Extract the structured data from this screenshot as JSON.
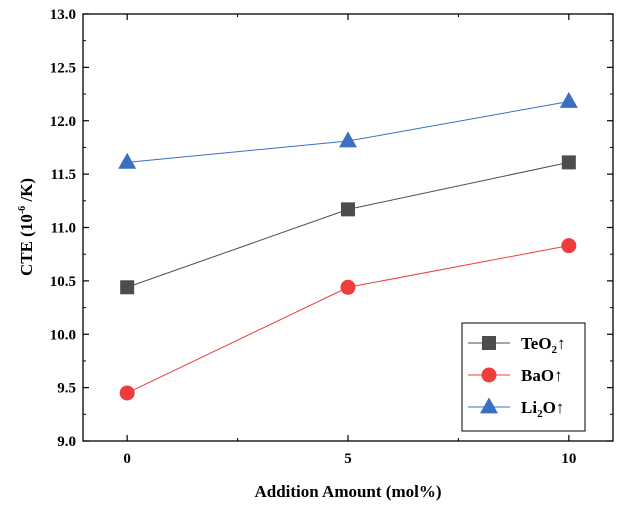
{
  "chart_data": {
    "type": "line",
    "xlabel": "Addition Amount (mol%)",
    "ylabel": {
      "prefix": "CTE (10",
      "superscript": "-6",
      "suffix": " /K)"
    },
    "x": [
      0,
      5,
      10
    ],
    "x_ticks": [
      "0",
      "5",
      "10"
    ],
    "xlim": [
      -1,
      11
    ],
    "y_ticks": [
      "9.0",
      "9.5",
      "10.0",
      "10.5",
      "11.0",
      "11.5",
      "12.0",
      "12.5",
      "13.0"
    ],
    "ylim": [
      9.0,
      13.0
    ],
    "grid": false,
    "legend_position": "bottom-right",
    "series": [
      {
        "name": "TeO2↑",
        "legend": {
          "base": "TeO",
          "subscript": "2",
          "suffix": "↑"
        },
        "values": [
          10.44,
          11.17,
          11.61
        ],
        "color": "#4d4d4d",
        "marker": "square"
      },
      {
        "name": "BaO↑",
        "legend": {
          "base": "BaO",
          "subscript": "",
          "suffix": "↑"
        },
        "values": [
          9.45,
          10.44,
          10.83
        ],
        "color": "#ef3d3d",
        "marker": "circle"
      },
      {
        "name": "Li2O↑",
        "legend": {
          "base": "Li",
          "subscript": "2",
          "suffix": "O↑"
        },
        "values": [
          11.61,
          11.81,
          12.18
        ],
        "color": "#3b6fc4",
        "marker": "triangle"
      }
    ]
  }
}
